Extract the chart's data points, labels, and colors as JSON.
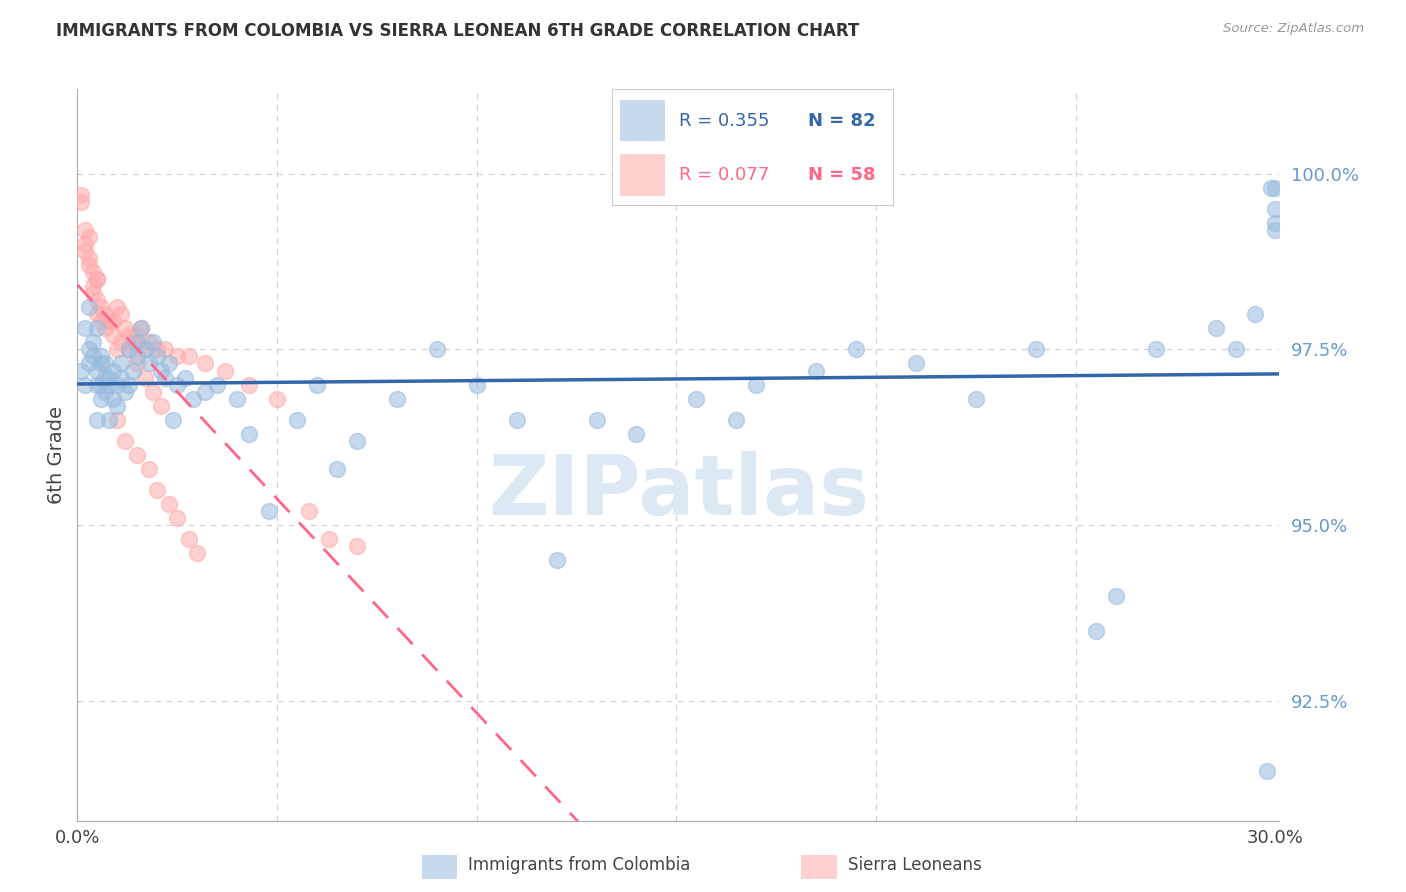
{
  "title": "IMMIGRANTS FROM COLOMBIA VS SIERRA LEONEAN 6TH GRADE CORRELATION CHART",
  "source": "Source: ZipAtlas.com",
  "ylabel": "6th Grade",
  "ylim": [
    90.8,
    101.2
  ],
  "xlim": [
    0.0,
    0.301
  ],
  "colombia_R": "R = 0.355",
  "colombia_N": "N = 82",
  "sierraleone_R": "R = 0.077",
  "sierraleone_N": "N = 58",
  "colombia_color": "#99BBDD",
  "sierraleone_color": "#FFAAAA",
  "colombia_line_color": "#3366AA",
  "sierraleone_line_color": "#FF6688",
  "watermark_color": "#DDE8F5",
  "grid_color": "#CCCCDD",
  "right_axis_color": "#6699CC",
  "colombia_x": [
    0.001,
    0.002,
    0.002,
    0.003,
    0.003,
    0.003,
    0.004,
    0.004,
    0.005,
    0.005,
    0.005,
    0.005,
    0.006,
    0.006,
    0.006,
    0.006,
    0.007,
    0.007,
    0.007,
    0.008,
    0.008,
    0.008,
    0.009,
    0.009,
    0.01,
    0.01,
    0.011,
    0.011,
    0.012,
    0.013,
    0.013,
    0.014,
    0.015,
    0.015,
    0.016,
    0.017,
    0.018,
    0.019,
    0.02,
    0.021,
    0.022,
    0.023,
    0.024,
    0.025,
    0.027,
    0.029,
    0.032,
    0.035,
    0.04,
    0.043,
    0.048,
    0.055,
    0.06,
    0.065,
    0.07,
    0.08,
    0.09,
    0.1,
    0.11,
    0.12,
    0.13,
    0.14,
    0.155,
    0.165,
    0.17,
    0.185,
    0.195,
    0.21,
    0.225,
    0.24,
    0.255,
    0.26,
    0.27,
    0.285,
    0.29,
    0.295,
    0.298,
    0.299,
    0.3,
    0.3,
    0.3,
    0.3
  ],
  "colombia_y": [
    97.2,
    97.8,
    97.0,
    97.5,
    97.3,
    98.1,
    97.4,
    97.6,
    97.2,
    97.8,
    96.5,
    97.0,
    97.3,
    96.8,
    97.4,
    97.0,
    97.1,
    96.9,
    97.3,
    97.0,
    96.5,
    97.1,
    96.8,
    97.2,
    97.0,
    96.7,
    97.1,
    97.3,
    96.9,
    97.0,
    97.5,
    97.2,
    97.4,
    97.6,
    97.8,
    97.5,
    97.3,
    97.6,
    97.4,
    97.2,
    97.1,
    97.3,
    96.5,
    97.0,
    97.1,
    96.8,
    96.9,
    97.0,
    96.8,
    96.3,
    95.2,
    96.5,
    97.0,
    95.8,
    96.2,
    96.8,
    97.5,
    97.0,
    96.5,
    94.5,
    96.5,
    96.3,
    96.8,
    96.5,
    97.0,
    97.2,
    97.5,
    97.3,
    96.8,
    97.5,
    93.5,
    94.0,
    97.5,
    97.8,
    97.5,
    98.0,
    91.5,
    99.8,
    99.5,
    99.3,
    99.8,
    99.2
  ],
  "sierraleone_x": [
    0.001,
    0.001,
    0.002,
    0.002,
    0.002,
    0.003,
    0.003,
    0.003,
    0.004,
    0.004,
    0.004,
    0.005,
    0.005,
    0.005,
    0.006,
    0.006,
    0.007,
    0.008,
    0.009,
    0.01,
    0.01,
    0.011,
    0.012,
    0.013,
    0.014,
    0.015,
    0.016,
    0.017,
    0.018,
    0.02,
    0.022,
    0.025,
    0.028,
    0.032,
    0.037,
    0.043,
    0.05,
    0.058,
    0.063,
    0.07,
    0.01,
    0.012,
    0.015,
    0.018,
    0.02,
    0.023,
    0.025,
    0.028,
    0.03,
    0.005,
    0.007,
    0.009,
    0.011,
    0.013,
    0.015,
    0.017,
    0.019,
    0.021
  ],
  "sierraleone_y": [
    99.7,
    99.6,
    99.2,
    99.0,
    98.9,
    99.1,
    98.8,
    98.7,
    98.6,
    98.4,
    98.3,
    98.5,
    98.2,
    98.0,
    98.1,
    97.9,
    97.8,
    97.9,
    97.7,
    98.1,
    97.5,
    98.0,
    97.8,
    97.7,
    97.6,
    97.7,
    97.8,
    97.5,
    97.6,
    97.5,
    97.5,
    97.4,
    97.4,
    97.3,
    97.2,
    97.0,
    96.8,
    95.2,
    94.8,
    94.7,
    96.5,
    96.2,
    96.0,
    95.8,
    95.5,
    95.3,
    95.1,
    94.8,
    94.6,
    98.5,
    98.0,
    97.9,
    97.6,
    97.5,
    97.3,
    97.1,
    96.9,
    96.7
  ]
}
